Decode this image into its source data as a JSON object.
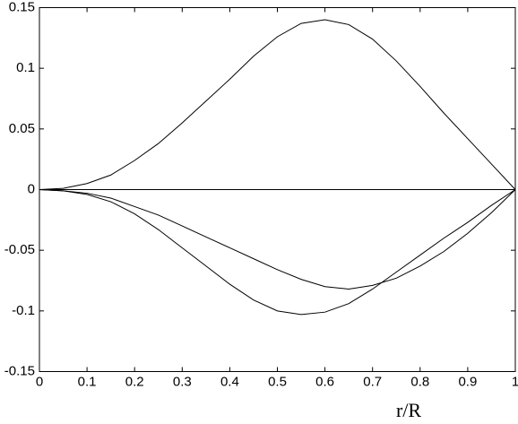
{
  "chart_data": {
    "type": "line",
    "x_label": "r/R",
    "x": [
      0,
      0.05,
      0.1,
      0.15,
      0.2,
      0.25,
      0.3,
      0.35,
      0.4,
      0.45,
      0.5,
      0.55,
      0.6,
      0.65,
      0.7,
      0.75,
      0.8,
      0.85,
      0.9,
      0.95,
      1
    ],
    "series": [
      {
        "color": "#000000",
        "values": [
          0,
          0.001,
          0.005,
          0.012,
          0.024,
          0.038,
          0.055,
          0.073,
          0.091,
          0.11,
          0.126,
          0.137,
          0.14,
          0.136,
          0.124,
          0.106,
          0.085,
          0.063,
          0.042,
          0.021,
          0
        ]
      },
      {
        "color": "#000000",
        "values": [
          0,
          0,
          0,
          0,
          0,
          0,
          0,
          0,
          0,
          0,
          0,
          0,
          0,
          0,
          0,
          0,
          0,
          0,
          0,
          0,
          0
        ]
      },
      {
        "color": "#000000",
        "values": [
          0,
          -0.001,
          -0.004,
          -0.01,
          -0.02,
          -0.033,
          -0.048,
          -0.063,
          -0.078,
          -0.091,
          -0.1,
          -0.103,
          -0.101,
          -0.094,
          -0.082,
          -0.068,
          -0.054,
          -0.04,
          -0.027,
          -0.013,
          0
        ]
      },
      {
        "color": "#000000",
        "values": [
          0,
          -0.001,
          -0.003,
          -0.007,
          -0.014,
          -0.021,
          -0.03,
          -0.039,
          -0.048,
          -0.057,
          -0.066,
          -0.074,
          -0.08,
          -0.082,
          -0.079,
          -0.073,
          -0.063,
          -0.051,
          -0.036,
          -0.019,
          0
        ]
      }
    ],
    "xlim": [
      0,
      1
    ],
    "xticks": [
      0,
      0.1,
      0.2,
      0.3,
      0.4,
      0.5,
      0.6,
      0.7,
      0.8,
      0.9,
      1
    ],
    "ylim": [
      -0.15,
      0.15
    ],
    "yticks": [
      -0.15,
      -0.1,
      -0.05,
      0,
      0.05,
      0.1,
      0.15
    ],
    "grid": false
  }
}
